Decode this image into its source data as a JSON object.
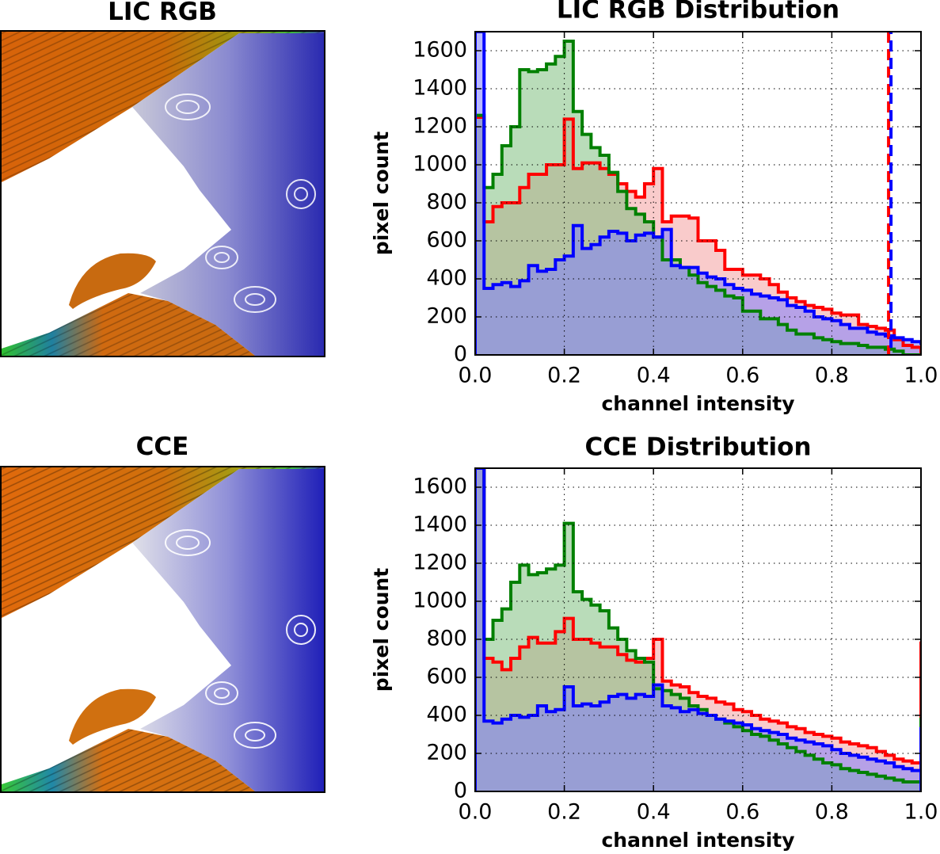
{
  "panels": {
    "top_image_title": "LIC RGB",
    "bottom_image_title": "CCE"
  },
  "colors": {
    "red": "#ff0000",
    "green": "#008000",
    "blue": "#0000ff"
  },
  "chart_data": [
    {
      "type": "step-histogram",
      "title": "LIC RGB Distribution",
      "xlabel": "channel intensity",
      "ylabel": "pixel count",
      "xlim": [
        0.0,
        1.0
      ],
      "ylim": [
        0,
        1700
      ],
      "xticks": [
        "0.0",
        "0.2",
        "0.4",
        "0.6",
        "0.8",
        "1.0"
      ],
      "yticks": [
        "0",
        "200",
        "400",
        "600",
        "800",
        "1000",
        "1200",
        "1400",
        "1600"
      ],
      "grid": true,
      "bin_width": 0.02,
      "markers": [
        {
          "x": 0.93,
          "style": "dashed",
          "colors": [
            "red",
            "blue"
          ]
        }
      ],
      "series": [
        {
          "color": "red",
          "values": [
            1250,
            700,
            780,
            800,
            800,
            880,
            950,
            950,
            1000,
            1000,
            1240,
            980,
            1010,
            1010,
            980,
            950,
            900,
            860,
            830,
            900,
            980,
            700,
            730,
            730,
            720,
            600,
            600,
            550,
            450,
            450,
            420,
            420,
            400,
            370,
            330,
            300,
            280,
            260,
            250,
            240,
            220,
            210,
            210,
            160,
            150,
            140,
            130,
            80,
            50,
            40,
            0,
            0,
            0,
            0,
            0,
            0,
            0
          ]
        },
        {
          "color": "green",
          "values": [
            1260,
            880,
            950,
            1100,
            1200,
            1500,
            1490,
            1500,
            1530,
            1570,
            1650,
            1280,
            1160,
            1090,
            1050,
            960,
            860,
            770,
            740,
            700,
            620,
            500,
            500,
            460,
            420,
            380,
            360,
            340,
            310,
            300,
            230,
            230,
            190,
            190,
            160,
            130,
            110,
            110,
            90,
            80,
            70,
            60,
            60,
            50,
            40,
            40,
            30,
            20,
            0,
            0,
            0,
            0,
            0,
            0,
            0,
            0,
            0
          ]
        },
        {
          "color": "blue",
          "values": [
            1700,
            350,
            370,
            380,
            360,
            390,
            470,
            440,
            450,
            500,
            520,
            680,
            560,
            580,
            620,
            650,
            640,
            600,
            630,
            640,
            620,
            660,
            470,
            460,
            460,
            430,
            410,
            400,
            370,
            350,
            340,
            320,
            310,
            300,
            290,
            260,
            250,
            230,
            200,
            190,
            180,
            160,
            140,
            140,
            120,
            110,
            100,
            90,
            80,
            70,
            60,
            50,
            40,
            30,
            20,
            10,
            0
          ]
        }
      ]
    },
    {
      "type": "step-histogram",
      "title": "CCE Distribution",
      "xlabel": "channel intensity",
      "ylabel": "pixel count",
      "xlim": [
        0.0,
        1.0
      ],
      "ylim": [
        0,
        1700
      ],
      "xticks": [
        "0.0",
        "0.2",
        "0.4",
        "0.6",
        "0.8",
        "1.0"
      ],
      "yticks": [
        "0",
        "200",
        "400",
        "600",
        "800",
        "1000",
        "1200",
        "1400",
        "1600"
      ],
      "grid": true,
      "bin_width": 0.02,
      "series": [
        {
          "color": "red",
          "values": [
            1700,
            700,
            680,
            640,
            700,
            760,
            810,
            780,
            780,
            840,
            910,
            800,
            800,
            780,
            760,
            760,
            720,
            690,
            680,
            700,
            800,
            580,
            560,
            550,
            520,
            500,
            490,
            470,
            460,
            430,
            420,
            400,
            380,
            370,
            360,
            340,
            330,
            310,
            300,
            290,
            280,
            260,
            250,
            240,
            230,
            210,
            190,
            170,
            160,
            150,
            140,
            780
          ]
        },
        {
          "color": "green",
          "values": [
            1700,
            800,
            900,
            960,
            1100,
            1190,
            1140,
            1150,
            1170,
            1190,
            1410,
            1050,
            1010,
            980,
            950,
            860,
            800,
            740,
            700,
            680,
            540,
            530,
            510,
            490,
            450,
            430,
            400,
            380,
            360,
            340,
            320,
            300,
            290,
            270,
            250,
            230,
            210,
            190,
            170,
            150,
            140,
            120,
            110,
            100,
            90,
            80,
            70,
            60,
            50,
            50,
            40,
            380
          ]
        },
        {
          "color": "blue",
          "values": [
            1700,
            370,
            360,
            380,
            400,
            390,
            400,
            450,
            420,
            430,
            550,
            450,
            460,
            450,
            470,
            500,
            510,
            490,
            510,
            500,
            560,
            450,
            440,
            420,
            430,
            410,
            400,
            380,
            370,
            360,
            350,
            330,
            320,
            310,
            300,
            280,
            270,
            260,
            250,
            240,
            220,
            200,
            190,
            180,
            170,
            160,
            150,
            130,
            120,
            110,
            100,
            330
          ]
        }
      ]
    }
  ]
}
